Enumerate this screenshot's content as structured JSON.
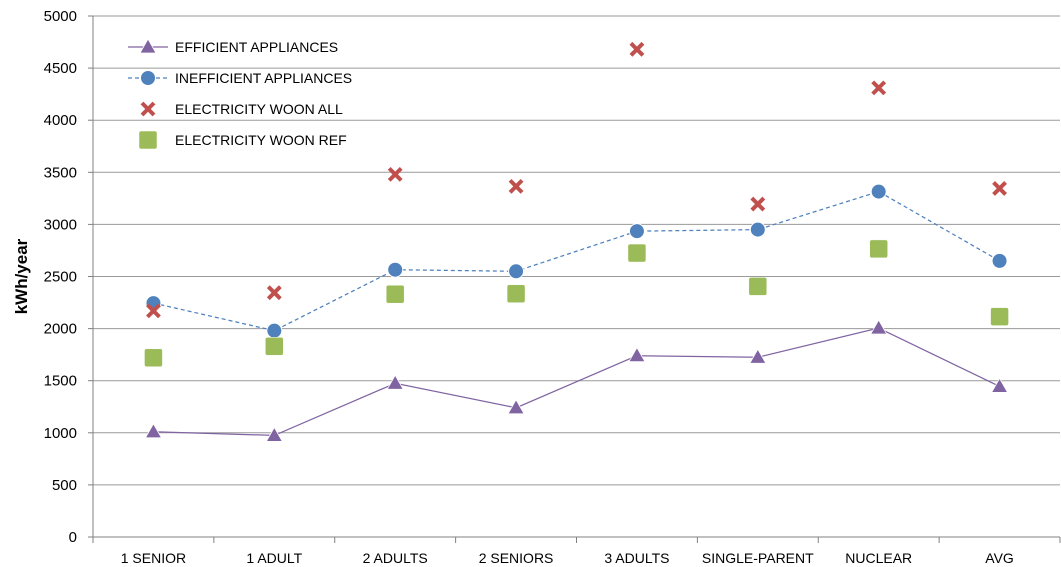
{
  "chart_data": {
    "type": "line",
    "title": "",
    "xlabel": "",
    "ylabel": "kWh/year",
    "ylim": [
      0,
      5000
    ],
    "yticks": [
      0,
      500,
      1000,
      1500,
      2000,
      2500,
      3000,
      3500,
      4000,
      4500,
      5000
    ],
    "grid": "horizontal",
    "legend_position": "top-left",
    "categories": [
      "1 SENIOR",
      "1 ADULT",
      "2 ADULTS",
      "2 SENIORS",
      "3 ADULTS",
      "SINGLE-PARENT",
      "NUCLEAR",
      "AVG"
    ],
    "series": [
      {
        "name": "EFFICIENT APPLIANCES",
        "style": "solid-line-triangle",
        "color": "#8064A2",
        "values": [
          1010,
          975,
          1475,
          1240,
          1740,
          1725,
          2005,
          1445
        ]
      },
      {
        "name": "INEFFICIENT APPLIANCES",
        "style": "dashed-line-circle",
        "color": "#4F81BD",
        "values": [
          2245,
          1980,
          2565,
          2550,
          2935,
          2950,
          3315,
          2650
        ]
      },
      {
        "name": "ELECTRICITY WOON ALL",
        "style": "x-marker",
        "color": "#C0504D",
        "values": [
          2170,
          2345,
          3480,
          3365,
          4680,
          3195,
          4310,
          3345
        ]
      },
      {
        "name": "ELECTRICITY WOON REF",
        "style": "square-marker",
        "color": "#9BBB59",
        "values": [
          1720,
          1830,
          2330,
          2335,
          2725,
          2405,
          2765,
          2115
        ]
      }
    ]
  }
}
